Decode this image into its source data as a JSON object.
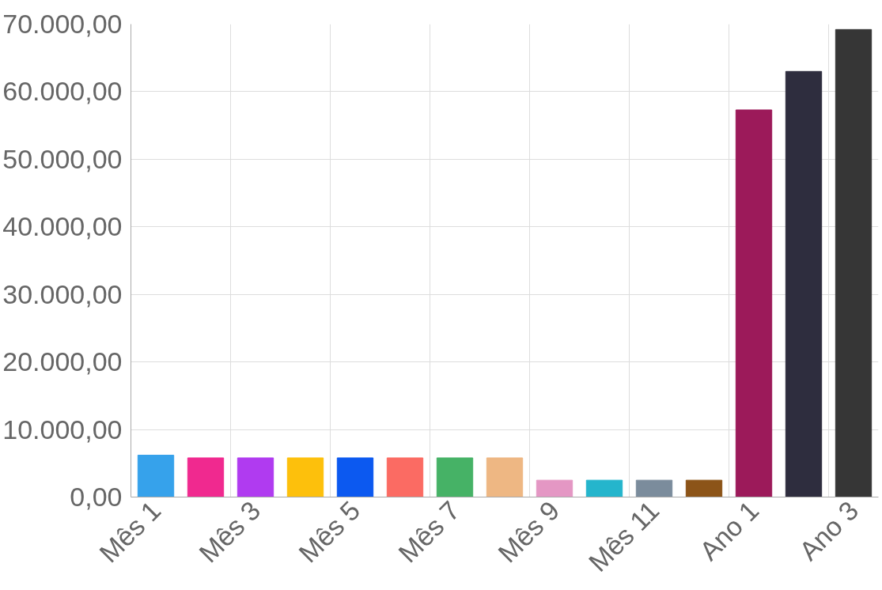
{
  "chart_data": {
    "type": "bar",
    "categories": [
      "Mês 1",
      null,
      "Mês 3",
      null,
      "Mês 5",
      null,
      "Mês 7",
      null,
      "Mês 9",
      null,
      "Mês 11",
      null,
      "Ano 1",
      null,
      "Ano 3"
    ],
    "values": [
      6200,
      5800,
      5800,
      5800,
      5800,
      5800,
      5800,
      5800,
      2500,
      2500,
      2500,
      2500,
      57300,
      63000,
      69200
    ],
    "colors": [
      "#36a2eb",
      "#f0298f",
      "#b03bf0",
      "#fdc00c",
      "#0c59f0",
      "#fb6b63",
      "#46b266",
      "#eeb783",
      "#e497c4",
      "#25b5cc",
      "#7b8c9c",
      "#8c5418",
      "#9c1a5a",
      "#2e2d3e",
      "#363636"
    ],
    "ylim": [
      0,
      70000
    ],
    "yticks": [
      {
        "value": 0,
        "label": "0,00"
      },
      {
        "value": 10000,
        "label": "10.000,00"
      },
      {
        "value": 20000,
        "label": "20.000,00"
      },
      {
        "value": 30000,
        "label": "30.000,00"
      },
      {
        "value": 40000,
        "label": "40.000,00"
      },
      {
        "value": 50000,
        "label": "50.000,00"
      },
      {
        "value": 60000,
        "label": "60.000,00"
      },
      {
        "value": 70000,
        "label": "70.000,00"
      }
    ],
    "grid": true
  }
}
